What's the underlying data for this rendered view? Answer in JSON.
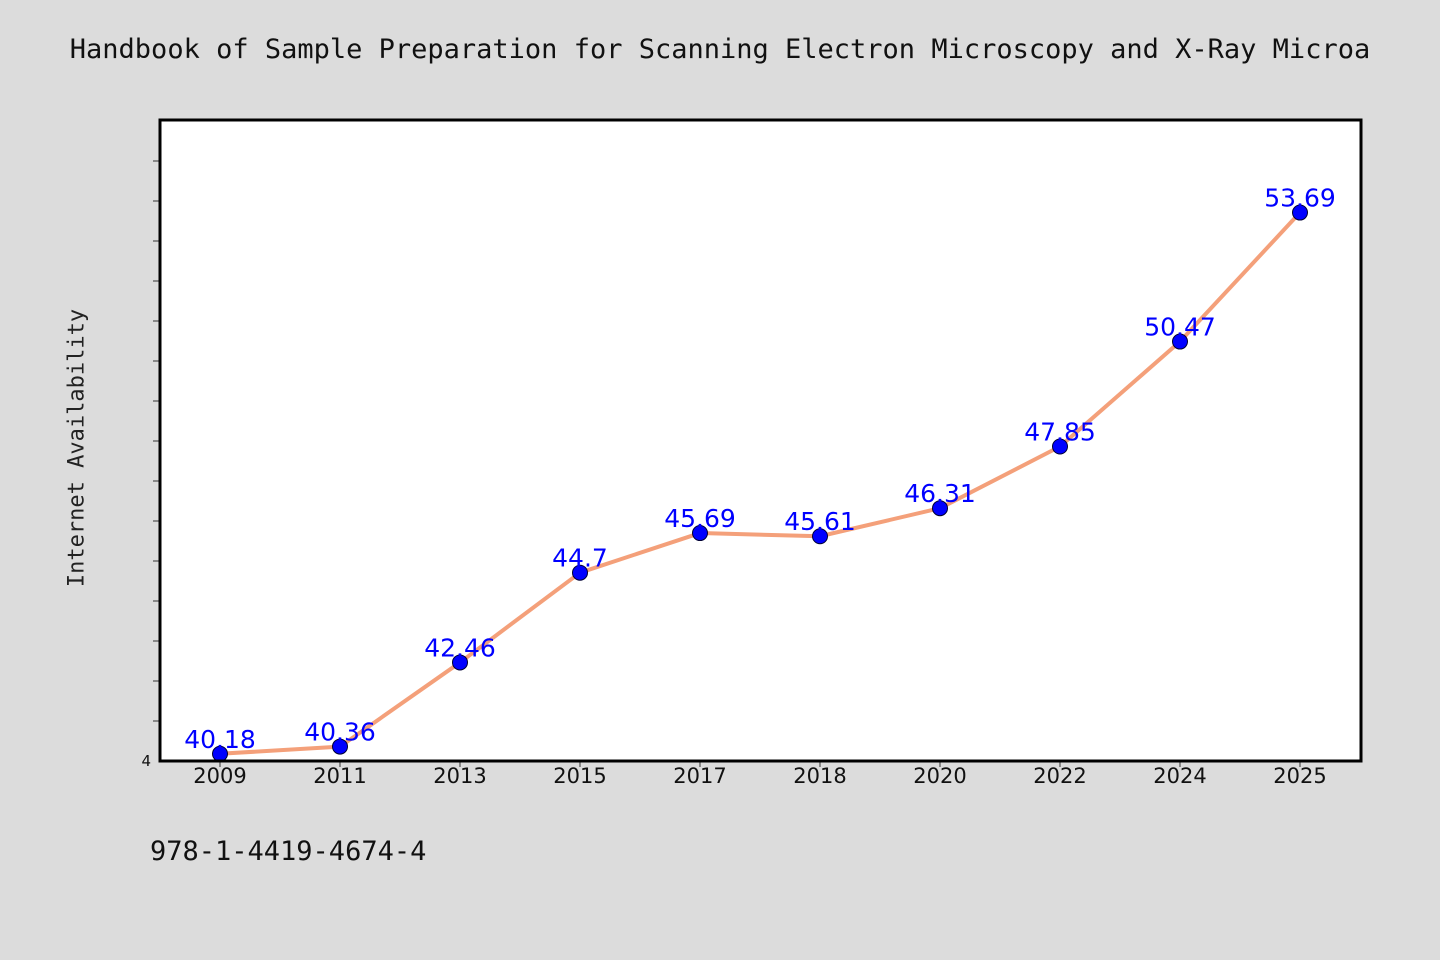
{
  "title": "Handbook of Sample Preparation for Scanning Electron Microscopy and X-Ray Microa",
  "footer_text": "978-1-4419-4674-4",
  "colors": {
    "background": "#dcdcdc",
    "plot_background": "#ffffff",
    "line": "#f4a07a",
    "marker": "#0000ff",
    "data_label": "#0000ff"
  },
  "chart_data": {
    "type": "line",
    "title": "Handbook of Sample Preparation for Scanning Electron Microscopy and X-Ray Microa",
    "xlabel": "",
    "ylabel": "Internet Availability",
    "categories": [
      "2009",
      "2011",
      "2013",
      "2015",
      "2017",
      "2018",
      "2020",
      "2022",
      "2024",
      "2025"
    ],
    "series": [
      {
        "values": [
          40.18,
          40.36,
          42.46,
          44.7,
          45.69,
          45.61,
          46.31,
          47.85,
          50.47,
          53.69
        ],
        "labels": [
          "40.18",
          "40.36",
          "42.46",
          "44.7",
          "45.69",
          "45.61",
          "46.31",
          "47.85",
          "50.47",
          "53.69"
        ]
      }
    ],
    "ylim": [
      40,
      56
    ],
    "y_min_label": "4",
    "grid": false,
    "legend": "none"
  }
}
